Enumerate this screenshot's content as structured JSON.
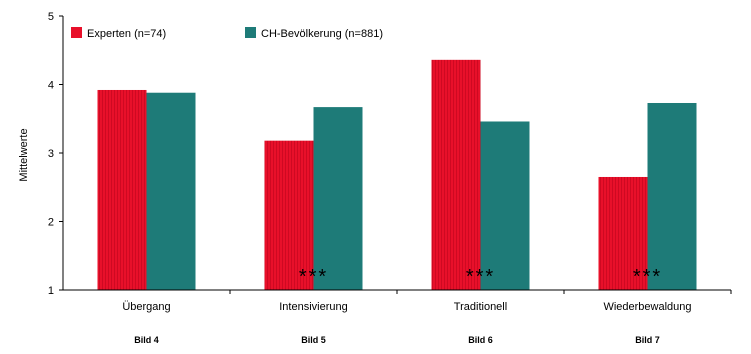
{
  "chart_data": {
    "type": "bar",
    "ylabel": "Mittelwerte",
    "ylim": [
      1,
      5
    ],
    "yticks": [
      "1",
      "2",
      "3",
      "4",
      "5"
    ],
    "grid": false,
    "legend_position": "top-left",
    "categories": [
      "Übergang",
      "Intensivierung",
      "Traditionell",
      "Wiederbewaldung"
    ],
    "sublabels": [
      "Bild 4",
      "Bild 5",
      "Bild 6",
      "Bild 7"
    ],
    "significance": [
      "",
      "***",
      "***",
      "***"
    ],
    "series": [
      {
        "name": "Experten (n=74)",
        "values": [
          3.92,
          3.18,
          4.36,
          2.65
        ],
        "color": "#e8102a"
      },
      {
        "name": "CH-Bevölkerung (n=881)",
        "values": [
          3.88,
          3.67,
          3.46,
          3.73
        ],
        "color": "#1e7b78"
      }
    ]
  }
}
